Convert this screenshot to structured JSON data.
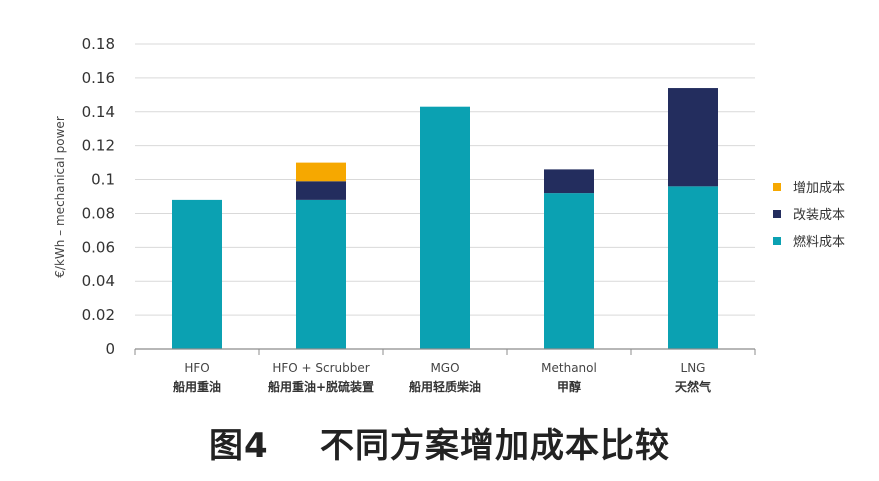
{
  "figure_caption": "图4    不同方案增加成本比较",
  "chart_data": {
    "type": "bar",
    "stacked": true,
    "ylabel": "€/kWh – mechanical power",
    "xlabel": "",
    "ylim": [
      0,
      0.18
    ],
    "yticks": [
      "0",
      "0.02",
      "0.04",
      "0.06",
      "0.08",
      "0.1",
      "0.12",
      "0.14",
      "0.16",
      "0.18"
    ],
    "grid": true,
    "legend_position": "right",
    "categories": [
      {
        "label": "HFO",
        "label_zh": "船用重油"
      },
      {
        "label": "HFO + Scrubber",
        "label_zh": "船用重油+脱硫装置"
      },
      {
        "label": "MGO",
        "label_zh": "船用轻质柴油"
      },
      {
        "label": "Methanol",
        "label_zh": "甲醇"
      },
      {
        "label": "LNG",
        "label_zh": "天然气"
      }
    ],
    "series": [
      {
        "name": "燃料成本",
        "color": "#0ba1b2",
        "values": [
          0.088,
          0.088,
          0.143,
          0.092,
          0.096
        ]
      },
      {
        "name": "改装成本",
        "color": "#232d5e",
        "values": [
          0,
          0.011,
          0,
          0.014,
          0.058
        ]
      },
      {
        "name": "增加成本",
        "color": "#f6a800",
        "values": [
          0,
          0.011,
          0,
          0,
          0
        ]
      }
    ],
    "legend_order": [
      "增加成本",
      "改装成本",
      "燃料成本"
    ]
  }
}
